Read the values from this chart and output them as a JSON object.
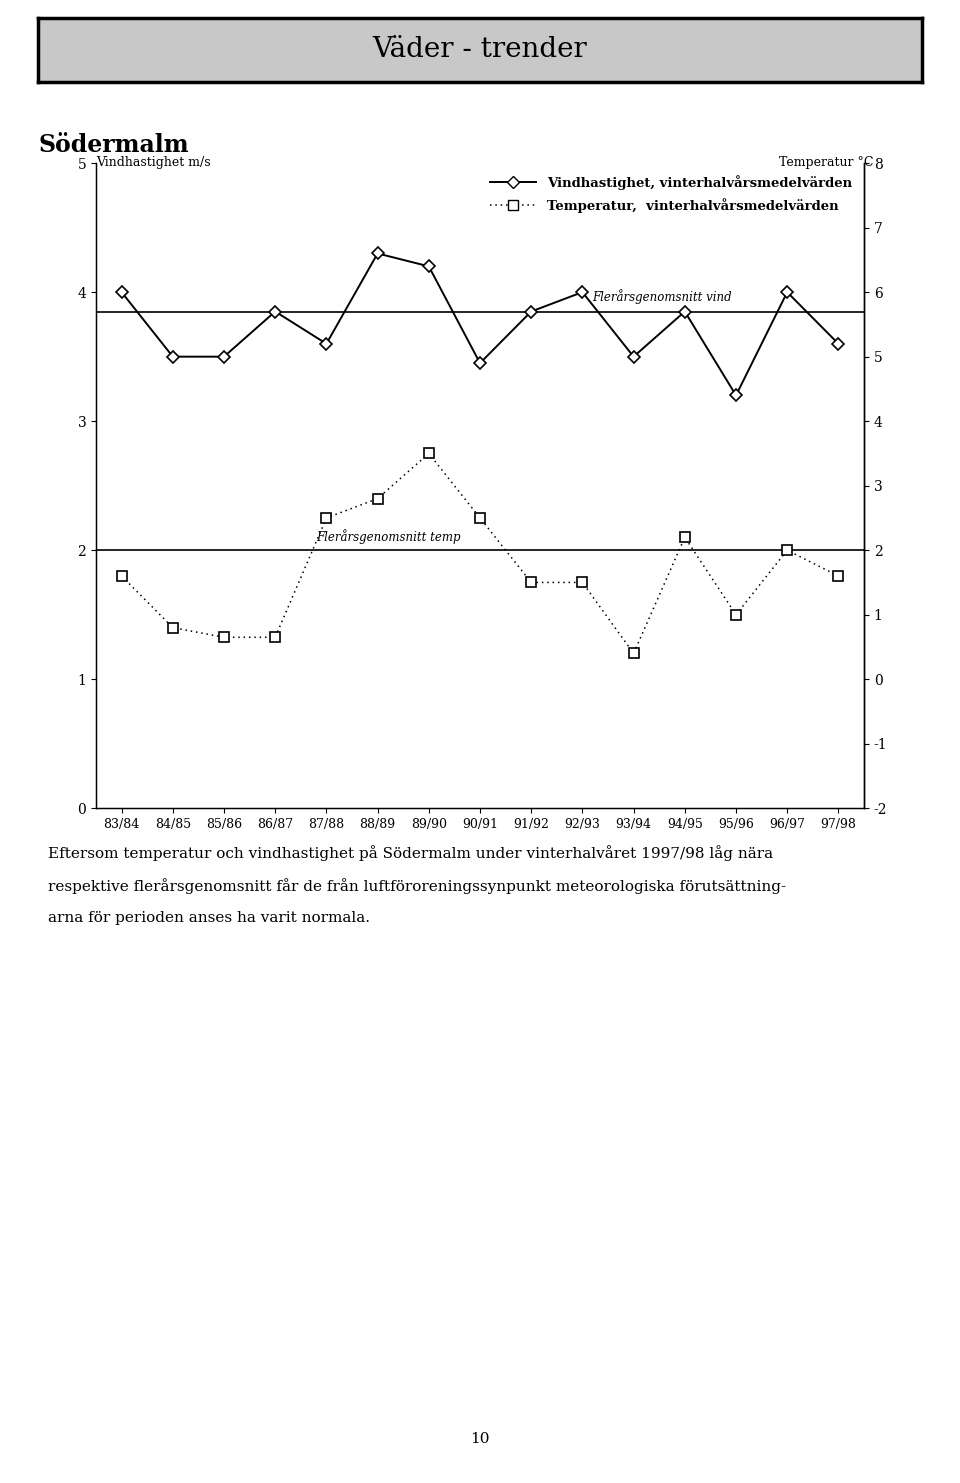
{
  "title": "Väder - trender",
  "subtitle": "Södermalm",
  "ylabel_left": "Vindhastighet m/s",
  "ylabel_right": "Temperatur °C",
  "x_labels": [
    "83/84",
    "84/85",
    "85/86",
    "86/87",
    "87/88",
    "88/89",
    "89/90",
    "90/91",
    "91/92",
    "92/93",
    "93/94",
    "94/95",
    "95/96",
    "96/97",
    "97/98"
  ],
  "wind_values": [
    4.0,
    3.5,
    3.5,
    3.85,
    3.6,
    4.3,
    4.2,
    3.45,
    3.85,
    4.0,
    3.5,
    3.85,
    3.2,
    4.0,
    3.6
  ],
  "temp_values": [
    1.6,
    0.8,
    0.65,
    0.65,
    2.5,
    2.8,
    3.5,
    2.5,
    1.5,
    1.5,
    0.4,
    2.2,
    1.0,
    2.0,
    1.6
  ],
  "wind_mean": 3.85,
  "temp_mean": 2.0,
  "wind_ylim": [
    0,
    5
  ],
  "temp_ylim": [
    -2,
    8
  ],
  "wind_mean_label": "Flerårsgenomsnitt vind",
  "temp_mean_label": "Flerårsgenomsnitt temp",
  "legend_wind": "Vindhastighet, vinterhalvårsmedelvärden",
  "legend_temp": "Temperatur,  vinterhalvårsmedelvärden",
  "footnote_line1": "Eftersom temperatur och vindhastighet på Södermalm under vinterhalvåret 1997/98 låg nära",
  "footnote_line2": "respektive flerårsgenomsnitt får de från luftföroreningssynpunkt meteorologiska förutsättning-",
  "footnote_line3": "arna för perioden anses ha varit normala.",
  "page_number": "10",
  "background_color": "#ffffff",
  "title_bg_color": "#c8c8c8"
}
